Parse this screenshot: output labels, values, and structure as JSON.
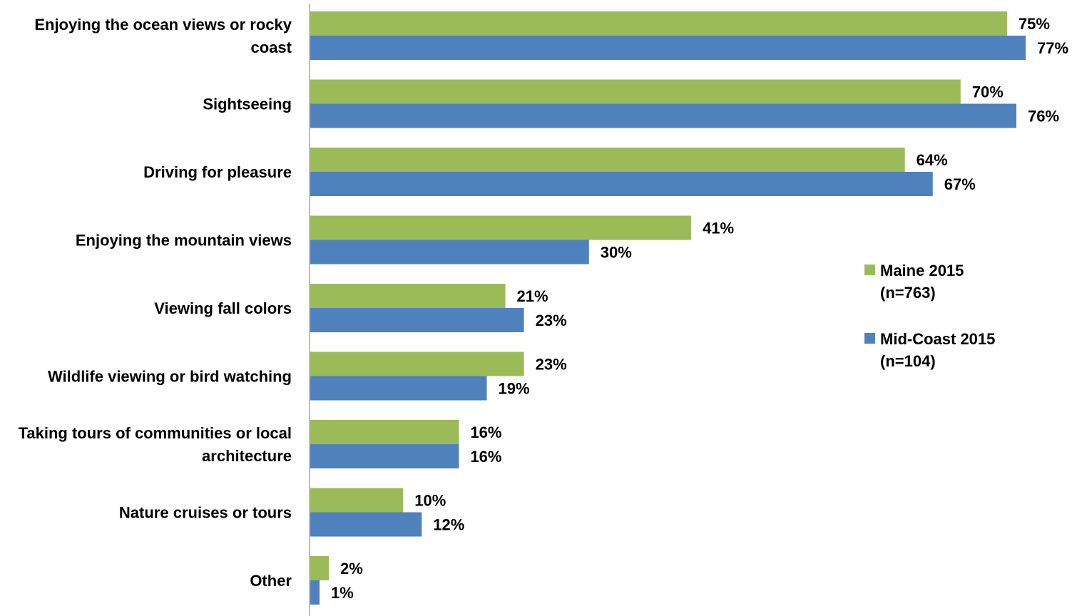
{
  "chart_data": {
    "type": "bar",
    "orientation": "horizontal",
    "title": "",
    "xlabel": "",
    "ylabel": "",
    "xlim": [
      0,
      77
    ],
    "grid": false,
    "legend_position": "right",
    "categories": [
      [
        "Enjoying the ocean views or rocky",
        "coast"
      ],
      [
        "Sightseeing"
      ],
      [
        "Driving for pleasure"
      ],
      [
        "Enjoying the mountain views"
      ],
      [
        "Viewing fall colors"
      ],
      [
        "Wildlife viewing or bird watching"
      ],
      [
        "Taking tours of communities or local",
        "architecture"
      ],
      [
        "Nature cruises or tours"
      ],
      [
        "Other"
      ]
    ],
    "series": [
      {
        "name": [
          "Maine 2015",
          "(n=763)"
        ],
        "color": "#9BBB59",
        "values": [
          75,
          70,
          64,
          41,
          21,
          23,
          16,
          10,
          2
        ],
        "labels": [
          "75%",
          "70%",
          "64%",
          "41%",
          "21%",
          "23%",
          "16%",
          "10%",
          "2%"
        ]
      },
      {
        "name": [
          "Mid-Coast 2015",
          "(n=104)"
        ],
        "color": "#4F81BD",
        "values": [
          77,
          76,
          67,
          30,
          23,
          19,
          16,
          12,
          1
        ],
        "labels": [
          "77%",
          "76%",
          "67%",
          "30%",
          "23%",
          "19%",
          "16%",
          "12%",
          "1%"
        ]
      }
    ],
    "axis_color": "#A6A6A6"
  }
}
